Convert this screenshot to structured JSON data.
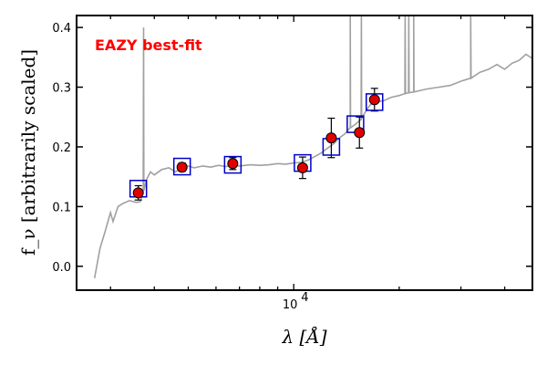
{
  "chart_data": {
    "type": "scatter",
    "title": "",
    "annotation": {
      "text": "EAZY best-fit",
      "color": "#ff0000"
    },
    "xlabel": "λ [Å]",
    "ylabel": "f_ν [arbitrarily scaled]",
    "xscale": "log",
    "xlim": [
      2400,
      48000
    ],
    "ylim": [
      -0.04,
      0.42
    ],
    "yticks": [
      0.0,
      0.1,
      0.2,
      0.3,
      0.4
    ],
    "ytick_labels": [
      "0.0",
      "0.1",
      "0.2",
      "0.3",
      "0.4"
    ],
    "xtick_major": 10000,
    "xtick_major_label": "10",
    "xtick_major_exponent": "4",
    "grid": false,
    "observed": {
      "marker": "circle",
      "color": "#e00000",
      "points": [
        {
          "x": 3600,
          "y": 0.123,
          "err": 0.012
        },
        {
          "x": 4800,
          "y": 0.166,
          "err": 0.007
        },
        {
          "x": 6700,
          "y": 0.172,
          "err": 0.01
        },
        {
          "x": 10600,
          "y": 0.165,
          "err": 0.018
        },
        {
          "x": 12800,
          "y": 0.215,
          "err": 0.033
        },
        {
          "x": 15400,
          "y": 0.224,
          "err": 0.026
        },
        {
          "x": 17000,
          "y": 0.279,
          "err": 0.019
        }
      ]
    },
    "model_photometry": {
      "marker": "square",
      "color": "#0000cc",
      "points": [
        {
          "x": 3600,
          "y": 0.13
        },
        {
          "x": 4800,
          "y": 0.167
        },
        {
          "x": 6700,
          "y": 0.17
        },
        {
          "x": 10600,
          "y": 0.173
        },
        {
          "x": 12800,
          "y": 0.2
        },
        {
          "x": 15000,
          "y": 0.238
        },
        {
          "x": 17000,
          "y": 0.275
        }
      ]
    },
    "sed_model": {
      "color": "#a0a0a0",
      "points": [
        [
          2700,
          -0.02
        ],
        [
          2800,
          0.03
        ],
        [
          2900,
          0.06
        ],
        [
          3000,
          0.09
        ],
        [
          3050,
          0.075
        ],
        [
          3150,
          0.1
        ],
        [
          3250,
          0.105
        ],
        [
          3400,
          0.11
        ],
        [
          3550,
          0.107
        ],
        [
          3640,
          0.108
        ],
        [
          3700,
          0.12
        ],
        [
          3800,
          0.145
        ],
        [
          3900,
          0.158
        ],
        [
          4000,
          0.153
        ],
        [
          4200,
          0.162
        ],
        [
          4400,
          0.165
        ],
        [
          4600,
          0.158
        ],
        [
          4800,
          0.166
        ],
        [
          5000,
          0.168
        ],
        [
          5200,
          0.165
        ],
        [
          5500,
          0.168
        ],
        [
          5800,
          0.166
        ],
        [
          6100,
          0.169
        ],
        [
          6400,
          0.167
        ],
        [
          6700,
          0.17
        ],
        [
          7000,
          0.168
        ],
        [
          7500,
          0.17
        ],
        [
          8000,
          0.169
        ],
        [
          8500,
          0.17
        ],
        [
          9000,
          0.172
        ],
        [
          9500,
          0.171
        ],
        [
          10000,
          0.173
        ],
        [
          10500,
          0.174
        ],
        [
          11000,
          0.178
        ],
        [
          11500,
          0.184
        ],
        [
          12000,
          0.19
        ],
        [
          12500,
          0.198
        ],
        [
          13000,
          0.205
        ],
        [
          13500,
          0.215
        ],
        [
          14000,
          0.222
        ],
        [
          14500,
          0.232
        ],
        [
          15000,
          0.238
        ],
        [
          15500,
          0.245
        ],
        [
          16000,
          0.258
        ],
        [
          16500,
          0.27
        ],
        [
          17000,
          0.275
        ],
        [
          18000,
          0.277
        ],
        [
          19000,
          0.283
        ],
        [
          20000,
          0.286
        ],
        [
          21000,
          0.29
        ],
        [
          22000,
          0.292
        ],
        [
          24000,
          0.297
        ],
        [
          26000,
          0.3
        ],
        [
          28000,
          0.303
        ],
        [
          30000,
          0.31
        ],
        [
          32000,
          0.315
        ],
        [
          34000,
          0.325
        ],
        [
          36000,
          0.33
        ],
        [
          38000,
          0.338
        ],
        [
          40000,
          0.33
        ],
        [
          42000,
          0.34
        ],
        [
          44000,
          0.345
        ],
        [
          46000,
          0.355
        ],
        [
          48000,
          0.348
        ]
      ],
      "emission_lines": [
        {
          "x": 3727,
          "peak": 0.4
        },
        {
          "x": 14500,
          "peak": 0.42
        },
        {
          "x": 15600,
          "peak": 0.42
        },
        {
          "x": 20800,
          "peak": 0.42
        },
        {
          "x": 21300,
          "peak": 0.42
        },
        {
          "x": 22000,
          "peak": 0.42
        },
        {
          "x": 32000,
          "peak": 0.42
        }
      ]
    }
  }
}
